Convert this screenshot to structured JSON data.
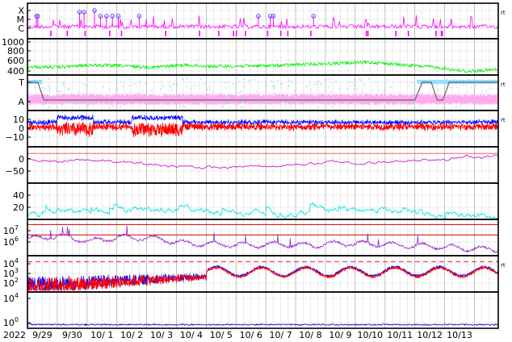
{
  "chart_data": {
    "type": "line",
    "x_start_label": "2022",
    "x_ticks": [
      "9/29",
      "9/30",
      "10/ 1",
      "10/ 2",
      "10/ 3",
      "10/ 4",
      "10/ 5",
      "10/ 6",
      "10/ 7",
      "10/ 8",
      "10/ 9",
      "10/10",
      "10/11",
      "10/12",
      "10/13"
    ],
    "grid": true,
    "colors": {
      "magenta": "#ff00ff",
      "green": "#00ee00",
      "lightblue": "#99ddff",
      "pink": "#ffaaee",
      "grey": "#666666",
      "blue": "#0000ff",
      "red": "#ff0000",
      "purple": "#cc00cc",
      "cyan": "#00e5e5",
      "violet": "#9922cc",
      "navy": "#0000cc"
    },
    "panels": [
      {
        "id": "flare-class",
        "ytick_labels": [
          "X",
          "M",
          "C"
        ],
        "right_label": "rt",
        "series": [
          {
            "color": "magenta",
            "style": "trace-with-markers"
          }
        ],
        "marker_days": [
          0.3,
          0.35,
          1.75,
          1.9,
          2.25,
          2.45,
          2.65,
          2.85,
          3.05,
          3.75,
          7.75,
          8.15,
          8.25,
          9.6
        ]
      },
      {
        "id": "speed",
        "ytick_labels": [
          "1000",
          "800",
          "600",
          "400"
        ],
        "ylim": [
          300,
          1100
        ],
        "series": [
          {
            "color": "green",
            "level_profile": [
              480,
              470,
              520,
              500,
              470,
              520,
              490,
              500,
              510,
              540,
              560,
              580,
              520,
              470,
              380,
              420
            ]
          }
        ]
      },
      {
        "id": "type-state",
        "ytick_labels": [
          "T",
          "A"
        ],
        "right_label": "rt",
        "series": [
          {
            "color": "lightblue"
          },
          {
            "color": "pink"
          },
          {
            "color": "grey",
            "style": "step"
          }
        ]
      },
      {
        "id": "imf",
        "ytick_labels": [
          "10",
          "0",
          "−10"
        ],
        "ylim": [
          -20,
          20
        ],
        "right_label": "rt",
        "series": [
          {
            "color": "blue"
          },
          {
            "color": "red"
          }
        ]
      },
      {
        "id": "dst",
        "ytick_labels": [
          "0",
          "−50"
        ],
        "ylim": [
          -90,
          20
        ],
        "series": [
          {
            "color": "purple",
            "level_profile": [
              -15,
              -25,
              -20,
              -30,
              -35,
              -40,
              -45,
              -40,
              -35,
              -30,
              -25,
              -30,
              -20,
              -15,
              -10,
              -5
            ]
          }
        ]
      },
      {
        "id": "index",
        "ytick_labels": [
          "40",
          "20"
        ],
        "ylim": [
          0,
          55
        ],
        "series": [
          {
            "color": "cyan",
            "level_profile": [
              5,
              15,
              10,
              12,
              18,
              14,
              12,
              10,
              8,
              14,
              12,
              16,
              10,
              8,
              4,
              3
            ]
          }
        ]
      },
      {
        "id": "electron-flux",
        "ytick_labels": [
          "10",
          "10"
        ],
        "ytick_exponents": [
          "7",
          "6"
        ],
        "ylim": [
          4,
          7.5
        ],
        "threshold_levels": [
          7,
          6
        ],
        "series": [
          {
            "color": "violet",
            "level_profile": [
              5.6,
              5.9,
              5.4,
              5.8,
              5.7,
              5.2,
              5.1,
              5.0,
              5.1,
              5.0,
              5.2,
              5.1,
              5.0,
              4.9,
              4.7,
              4.6
            ]
          }
        ]
      },
      {
        "id": "proton-ratio",
        "ytick_labels": [
          "10",
          "10",
          "10"
        ],
        "ytick_exponents": [
          "4",
          "3",
          "2"
        ],
        "ylim": [
          1,
          4.6
        ],
        "threshold_levels": [
          4.0
        ],
        "right_label": "rt",
        "series": [
          {
            "color": "blue"
          },
          {
            "color": "red"
          }
        ]
      },
      {
        "id": "proton-flux",
        "ytick_labels": [
          "10",
          "10"
        ],
        "ytick_exponents": [
          "4",
          "0"
        ],
        "ylim": [
          -0.5,
          4.5
        ],
        "series": [
          {
            "color": "navy",
            "level_profile": [
              0.05,
              0.02,
              0.0,
              0.0,
              0.0,
              0.0,
              0.0,
              0.0,
              0.0,
              0.0,
              0.0,
              0.0,
              0.0,
              0.0,
              0.0,
              0.0
            ]
          }
        ]
      }
    ]
  }
}
